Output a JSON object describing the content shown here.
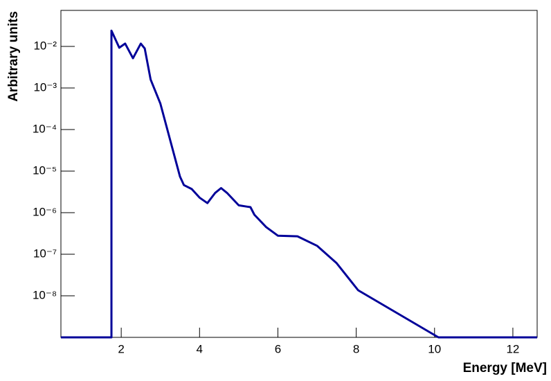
{
  "chart_data": {
    "type": "line",
    "y_label": "Arbitrary units",
    "x_label": "Energy [MeV]",
    "log_y": true,
    "grid": false,
    "xlim": [
      0.46,
      12.62
    ],
    "ylim": [
      1e-09,
      0.0736
    ],
    "xticks": [
      2,
      4,
      6,
      8,
      10,
      12
    ],
    "yticks": [
      {
        "value": 1e-08,
        "label": "10⁻⁸"
      },
      {
        "value": 1e-07,
        "label": "10⁻⁷"
      },
      {
        "value": 1e-06,
        "label": "10⁻⁶"
      },
      {
        "value": 1e-05,
        "label": "10⁻⁵"
      },
      {
        "value": 0.0001,
        "label": "10⁻⁴"
      },
      {
        "value": 0.001,
        "label": "10⁻³"
      },
      {
        "value": 0.01,
        "label": "10⁻²"
      }
    ],
    "color": "#000099",
    "x": [
      0.46,
      1.75,
      1.75,
      1.95,
      2.1,
      2.3,
      2.5,
      2.6,
      2.75,
      3.0,
      3.5,
      3.6,
      3.8,
      4.0,
      4.2,
      4.4,
      4.55,
      4.7,
      5.0,
      5.2,
      5.3,
      5.4,
      5.7,
      6.0,
      6.5,
      7.0,
      7.5,
      8.05,
      10.1,
      12.62
    ],
    "values": [
      0,
      0,
      0.024,
      0.0093,
      0.0117,
      0.0052,
      0.0117,
      0.0089,
      0.0016,
      0.00042,
      7.4e-06,
      4.6e-06,
      3.7e-06,
      2.3e-06,
      1.7e-06,
      3e-06,
      3.9e-06,
      3e-06,
      1.5e-06,
      1.4e-06,
      1.36e-06,
      8.9e-07,
      4.5e-07,
      2.8e-07,
      2.7e-07,
      1.6e-07,
      6.1e-08,
      1.36e-08,
      1e-09,
      0
    ]
  }
}
